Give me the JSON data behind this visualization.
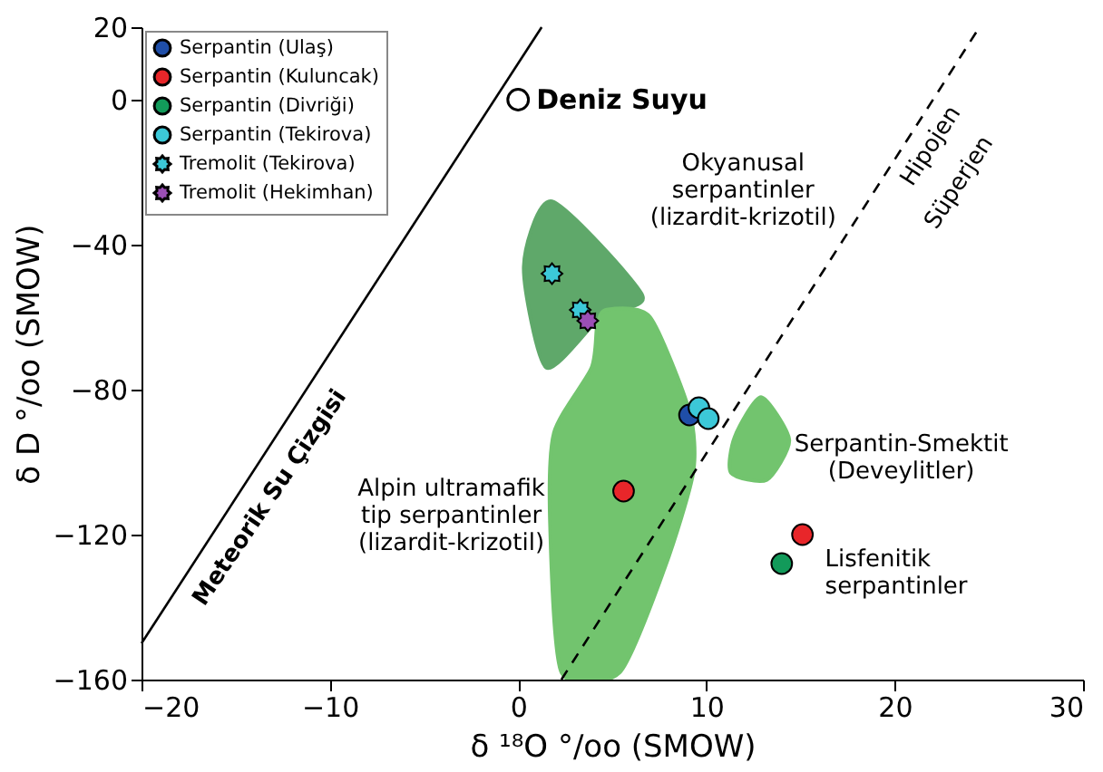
{
  "chart_data": {
    "type": "scatter",
    "xlabel": "δ ¹⁸O °/oo (SMOW)",
    "ylabel": "δ D °/oo (SMOW)",
    "xlim": [
      -20,
      30
    ],
    "xticks": [
      -20,
      -10,
      0,
      10,
      20,
      30
    ],
    "ylim": [
      -160,
      20
    ],
    "yticks": [
      -160,
      -120,
      -80,
      -40,
      0,
      20
    ],
    "grid": false,
    "legend": "top left",
    "series": [
      {
        "type": "line",
        "color": "#000000",
        "line_style": "solid",
        "x": [
          -20,
          1.25
        ],
        "values": [
          -150,
          20
        ]
      },
      {
        "type": "line",
        "color": "#000000",
        "line_style": "dashed",
        "x": [
          2.3,
          24.5
        ],
        "values": [
          -160,
          20
        ]
      },
      {
        "type": "scatter",
        "color": "#000000",
        "marker": "circle",
        "x": [
          0
        ],
        "values": [
          0
        ]
      },
      {
        "name": "Serpantin (Ulaş)",
        "color": "#1f4ea8",
        "marker": "circle",
        "x": [
          9.1
        ],
        "values": [
          -87
        ]
      },
      {
        "name": "Serpantin (Kuluncak)",
        "color": "#e8262a",
        "marker": "circle",
        "x": [
          5.6,
          15.1
        ],
        "values": [
          -108,
          -120
        ]
      },
      {
        "name": "Serpantin (Divriği)",
        "color": "#129a5a",
        "marker": "circle",
        "x": [
          14.0
        ],
        "values": [
          -128
        ]
      },
      {
        "name": "Serpantin (Tekirova)",
        "color": "#3cc8d8",
        "marker": "circle",
        "x": [
          9.6,
          10.1
        ],
        "values": [
          -85,
          -88
        ]
      },
      {
        "name": "Tremolit (Tekirova)",
        "color": "#3cc8d8",
        "marker": "star",
        "x": [
          1.8,
          3.3
        ],
        "values": [
          -48,
          -58
        ]
      },
      {
        "name": "Tremolit (Hekimhan)",
        "color": "#9b4fb5",
        "marker": "star",
        "x": [
          3.7
        ],
        "values": [
          -61
        ]
      }
    ],
    "annotations": [
      {
        "text": "Deniz Suyu",
        "x": 0,
        "y": 0
      },
      "Meteorik Su Çizgisi",
      "Hipojen",
      "Süperjen",
      "Okyanusal\nserpantinler\n(lizardit-krizotil)",
      "Alpin ultramafik\ntip serpantinler\n(lizardit-krizotil)",
      "Serpantin-Smektit\n(Deveylitler)",
      "Lisfenitik\nserpantinler"
    ]
  }
}
